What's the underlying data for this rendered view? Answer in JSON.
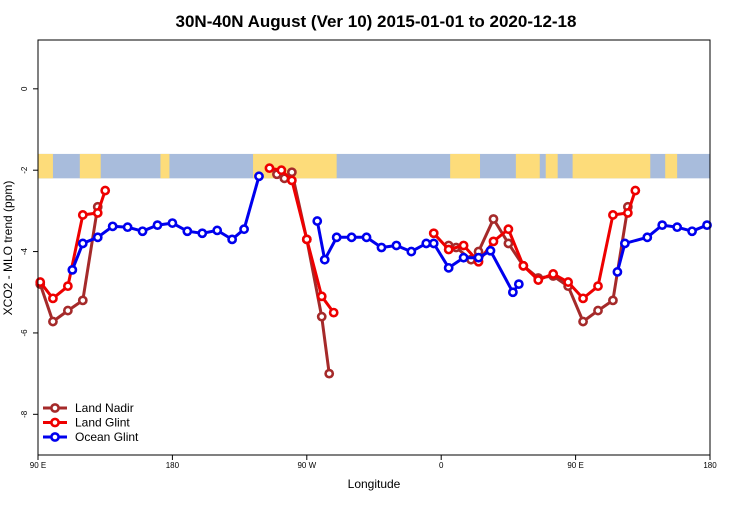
{
  "chart_data": {
    "type": "line",
    "title": "30N-40N August (Ver 10)   2015-01-01 to 2020-12-18",
    "xlabel": "Longitude",
    "ylabel": "XCO2 - MLO trend (ppm)",
    "xlim": [
      -90,
      360
    ],
    "ylim": [
      -9,
      1.2
    ],
    "x_ticks": [
      {
        "value": -90,
        "label": "90 E"
      },
      {
        "value": 0,
        "label": "180"
      },
      {
        "value": 90,
        "label": "90 W"
      },
      {
        "value": 180,
        "label": "0"
      },
      {
        "value": 270,
        "label": "90 E"
      },
      {
        "value": 360,
        "label": "180"
      }
    ],
    "y_ticks": [
      {
        "value": 0,
        "label": "0"
      },
      {
        "value": -2,
        "label": "-2"
      },
      {
        "value": -4,
        "label": "-4"
      },
      {
        "value": -6,
        "label": "-6"
      },
      {
        "value": -8,
        "label": "-8"
      }
    ],
    "grid": false,
    "legend_position": "bottom-left",
    "map_strip": {
      "y_range": [
        -2.2,
        -1.6
      ],
      "ocean_color": "#a8bcdc",
      "land_color": "#fddc7a",
      "land_segments": [
        [
          -90,
          -80
        ],
        [
          -62,
          -48
        ],
        [
          -8,
          -2
        ],
        [
          54,
          110
        ],
        [
          186,
          206
        ],
        [
          230,
          246
        ],
        [
          250,
          258
        ],
        [
          268,
          320
        ],
        [
          330,
          338
        ]
      ]
    },
    "series": [
      {
        "name": "Land Nadir",
        "color": "#a52a2a",
        "segments": [
          [
            [
              -88.5,
              -4.8
            ],
            [
              -80,
              -5.72
            ],
            [
              -70,
              -5.45
            ],
            [
              -60,
              -5.2
            ],
            [
              -50,
              -2.9
            ]
          ],
          [
            [
              70,
              -2.1
            ],
            [
              75,
              -2.2
            ],
            [
              80,
              -2.05
            ],
            [
              90,
              -3.7
            ],
            [
              100,
              -5.6
            ],
            [
              105,
              -7.0
            ]
          ],
          [
            [
              185,
              -3.85
            ],
            [
              190,
              -3.9
            ],
            [
              200,
              -4.2
            ],
            [
              205,
              -4.0
            ],
            [
              215,
              -3.2
            ],
            [
              225,
              -3.8
            ],
            [
              235,
              -4.35
            ],
            [
              245,
              -4.65
            ],
            [
              255,
              -4.6
            ],
            [
              265,
              -4.85
            ],
            [
              275,
              -5.72
            ],
            [
              285,
              -5.45
            ],
            [
              295,
              -5.2
            ],
            [
              305,
              -2.9
            ]
          ]
        ]
      },
      {
        "name": "Land Glint",
        "color": "#ee0000",
        "segments": [
          [
            [
              -88.5,
              -4.75
            ],
            [
              -80,
              -5.15
            ],
            [
              -70,
              -4.85
            ],
            [
              -60,
              -3.1
            ],
            [
              -50,
              -3.05
            ],
            [
              -45,
              -2.5
            ]
          ],
          [
            [
              65,
              -1.95
            ],
            [
              73,
              -2.0
            ],
            [
              80,
              -2.25
            ],
            [
              90,
              -3.7
            ],
            [
              100,
              -5.1
            ],
            [
              108,
              -5.5
            ]
          ],
          [
            [
              175,
              -3.55
            ],
            [
              185,
              -3.95
            ],
            [
              195,
              -3.85
            ],
            [
              205,
              -4.25
            ],
            [
              215,
              -3.75
            ],
            [
              225,
              -3.45
            ],
            [
              235,
              -4.35
            ],
            [
              245,
              -4.7
            ],
            [
              255,
              -4.55
            ],
            [
              265,
              -4.75
            ],
            [
              275,
              -5.15
            ],
            [
              285,
              -4.85
            ],
            [
              295,
              -3.1
            ],
            [
              305,
              -3.05
            ],
            [
              310,
              -2.5
            ]
          ]
        ]
      },
      {
        "name": "Ocean Glint",
        "color": "#0000ee",
        "segments": [
          [
            [
              -67,
              -4.45
            ],
            [
              -60,
              -3.8
            ],
            [
              -50,
              -3.65
            ],
            [
              -40,
              -3.38
            ],
            [
              -30,
              -3.4
            ],
            [
              -20,
              -3.5
            ],
            [
              -10,
              -3.35
            ],
            [
              0,
              -3.3
            ],
            [
              10,
              -3.5
            ],
            [
              20,
              -3.55
            ],
            [
              30,
              -3.48
            ],
            [
              40,
              -3.7
            ],
            [
              48,
              -3.45
            ],
            [
              58,
              -2.15
            ]
          ],
          [
            [
              97,
              -3.25
            ],
            [
              102,
              -4.2
            ],
            [
              110,
              -3.65
            ],
            [
              120,
              -3.65
            ],
            [
              130,
              -3.65
            ],
            [
              140,
              -3.9
            ],
            [
              150,
              -3.85
            ],
            [
              160,
              -4.0
            ],
            [
              170,
              -3.8
            ],
            [
              175,
              -3.8
            ],
            [
              185,
              -4.4
            ],
            [
              195,
              -4.15
            ],
            [
              205,
              -4.15
            ],
            [
              213,
              -3.98
            ],
            [
              228,
              -5.0
            ],
            [
              232,
              -4.8
            ]
          ],
          [
            [
              298,
              -4.5
            ],
            [
              303,
              -3.8
            ],
            [
              318,
              -3.65
            ],
            [
              328,
              -3.35
            ],
            [
              338,
              -3.4
            ],
            [
              348,
              -3.5
            ],
            [
              358,
              -3.35
            ]
          ]
        ]
      }
    ]
  }
}
